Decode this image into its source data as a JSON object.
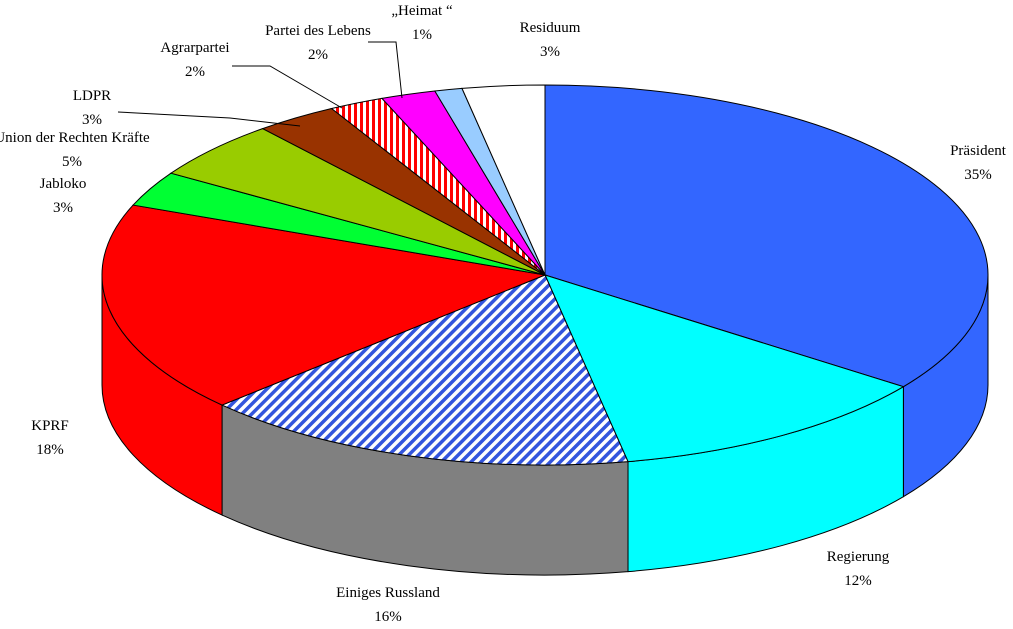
{
  "chart_data": {
    "type": "pie3d",
    "categories": [
      "Präsident",
      "Regierung",
      "Einiges Russland",
      "KPRF",
      "Jabloko",
      "Union der Rechten Kräfte",
      "LDPR",
      "Agrarpartei",
      "Partei des Lebens",
      "„Heimat “",
      "Residuum"
    ],
    "values": [
      35,
      12,
      16,
      18,
      3,
      5,
      3,
      2,
      2,
      1,
      3
    ],
    "value_labels": [
      "35%",
      "12%",
      "16%",
      "18%",
      "3%",
      "5%",
      "3%",
      "2%",
      "2%",
      "1%",
      "3%"
    ],
    "colors": [
      "#3366ff",
      "#00ffff",
      "#3355dd",
      "#ff0000",
      "#00ff33",
      "#99cc00",
      "#993300",
      "#ff0000",
      "#ff00ff",
      "#99ccff",
      "#ffffff"
    ],
    "side_colors": [
      "#3366ff",
      "#00ffff",
      "#808080",
      "#ff0000",
      "#00ff33",
      "#99cc00",
      "#993300",
      "#ff0000",
      "#ff00ff",
      "#99ccff",
      "#ffffff"
    ],
    "hatched": [
      false,
      false,
      true,
      false,
      false,
      false,
      false,
      true,
      false,
      false,
      false
    ]
  }
}
